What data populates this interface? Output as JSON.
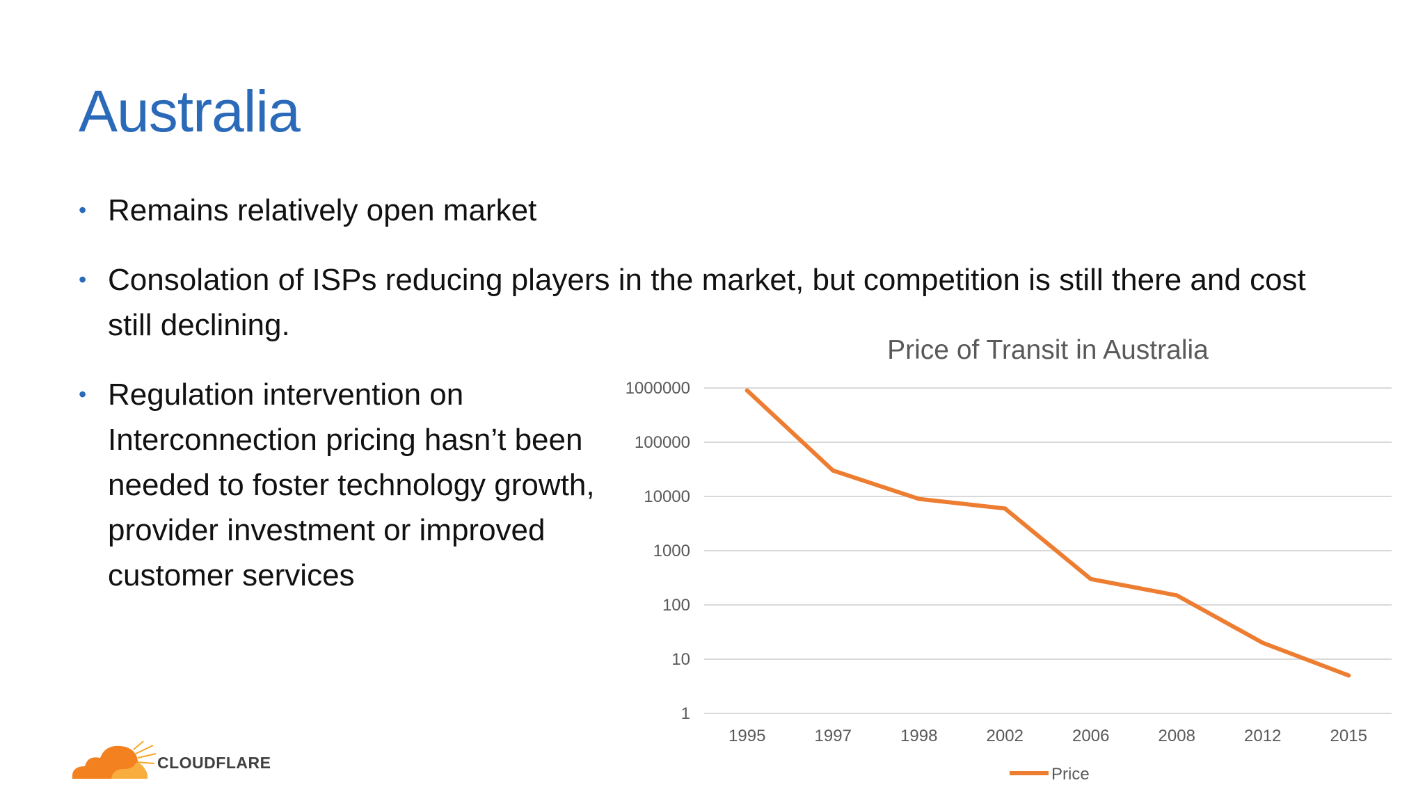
{
  "slide": {
    "title": "Australia",
    "bullets": [
      "Remains relatively open market",
      "Consolation of ISPs reducing players in the market, but competition is still there and cost still declining.",
      "Regulation intervention on Interconnection pricing hasn’t been needed to foster technology growth, provider investment or improved customer services"
    ]
  },
  "logo": {
    "text": "CLOUDFLARE",
    "icon": "cloudflare-cloud-icon"
  },
  "colors": {
    "title": "#2a6ab8",
    "series": "#ed7d31",
    "grid": "#d9d9d9",
    "axis_text": "#595959"
  },
  "chart_data": {
    "type": "line",
    "title": "Price of Transit in Australia",
    "xlabel": "",
    "ylabel": "",
    "y_scale": "log",
    "categories": [
      "1995",
      "1997",
      "1998",
      "2002",
      "2006",
      "2008",
      "2012",
      "2015"
    ],
    "y_ticks": [
      "1000000",
      "100000",
      "10000",
      "1000",
      "100",
      "10",
      "1"
    ],
    "ylim": [
      1,
      1000000
    ],
    "series": [
      {
        "name": "Price",
        "values": [
          900000,
          30000,
          9000,
          6000,
          300,
          150,
          20,
          5
        ]
      }
    ],
    "legend": "bottom",
    "grid": true
  }
}
